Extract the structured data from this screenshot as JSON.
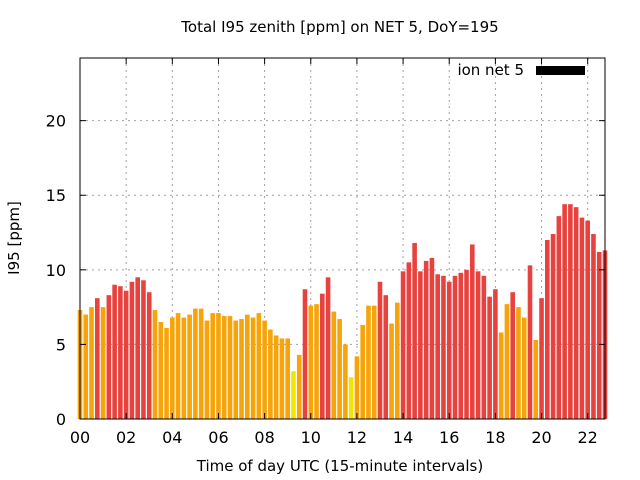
{
  "chart_data": {
    "type": "bar",
    "title": "Total I95 zenith [ppm] on NET 5, DoY=195",
    "xlabel": "Time of day UTC (15-minute intervals)",
    "ylabel": "I95 [ppm]",
    "xlim": [
      0,
      22.75
    ],
    "ylim": [
      0,
      24.2
    ],
    "x_ticks": [
      0,
      2,
      4,
      6,
      8,
      10,
      12,
      14,
      16,
      18,
      20,
      22
    ],
    "x_tick_labels": [
      "00",
      "02",
      "04",
      "06",
      "08",
      "10",
      "12",
      "14",
      "16",
      "18",
      "20",
      "22"
    ],
    "y_ticks": [
      0,
      5,
      10,
      15,
      20
    ],
    "y_tick_labels": [
      "0",
      "5",
      "10",
      "15",
      "20"
    ],
    "grid": true,
    "legend": {
      "label": "ion net 5",
      "position": "top-right",
      "color": "#000000"
    },
    "colors": {
      "high": "#e8423f",
      "medium": "#f7a30a",
      "low": "#f2e600",
      "grid": "#a0a0a0"
    },
    "bars": [
      {
        "x": 0.0,
        "value": 7.3,
        "level": "medium"
      },
      {
        "x": 0.25,
        "value": 7.0,
        "level": "medium"
      },
      {
        "x": 0.5,
        "value": 7.5,
        "level": "medium"
      },
      {
        "x": 0.75,
        "value": 8.1,
        "level": "high"
      },
      {
        "x": 1.0,
        "value": 7.5,
        "level": "medium"
      },
      {
        "x": 1.25,
        "value": 8.3,
        "level": "high"
      },
      {
        "x": 1.5,
        "value": 9.0,
        "level": "high"
      },
      {
        "x": 1.75,
        "value": 8.9,
        "level": "high"
      },
      {
        "x": 2.0,
        "value": 8.6,
        "level": "high"
      },
      {
        "x": 2.25,
        "value": 9.2,
        "level": "high"
      },
      {
        "x": 2.5,
        "value": 9.5,
        "level": "high"
      },
      {
        "x": 2.75,
        "value": 9.3,
        "level": "high"
      },
      {
        "x": 3.0,
        "value": 8.5,
        "level": "high"
      },
      {
        "x": 3.25,
        "value": 7.3,
        "level": "medium"
      },
      {
        "x": 3.5,
        "value": 6.5,
        "level": "medium"
      },
      {
        "x": 3.75,
        "value": 6.1,
        "level": "medium"
      },
      {
        "x": 4.0,
        "value": 6.8,
        "level": "medium"
      },
      {
        "x": 4.25,
        "value": 7.1,
        "level": "medium"
      },
      {
        "x": 4.5,
        "value": 6.8,
        "level": "medium"
      },
      {
        "x": 4.75,
        "value": 7.0,
        "level": "medium"
      },
      {
        "x": 5.0,
        "value": 7.4,
        "level": "medium"
      },
      {
        "x": 5.25,
        "value": 7.4,
        "level": "medium"
      },
      {
        "x": 5.5,
        "value": 6.6,
        "level": "medium"
      },
      {
        "x": 5.75,
        "value": 7.1,
        "level": "medium"
      },
      {
        "x": 6.0,
        "value": 7.1,
        "level": "medium"
      },
      {
        "x": 6.25,
        "value": 6.9,
        "level": "medium"
      },
      {
        "x": 6.5,
        "value": 6.9,
        "level": "medium"
      },
      {
        "x": 6.75,
        "value": 6.6,
        "level": "medium"
      },
      {
        "x": 7.0,
        "value": 6.7,
        "level": "medium"
      },
      {
        "x": 7.25,
        "value": 7.0,
        "level": "medium"
      },
      {
        "x": 7.5,
        "value": 6.8,
        "level": "medium"
      },
      {
        "x": 7.75,
        "value": 7.1,
        "level": "medium"
      },
      {
        "x": 8.0,
        "value": 6.6,
        "level": "medium"
      },
      {
        "x": 8.25,
        "value": 6.0,
        "level": "medium"
      },
      {
        "x": 8.5,
        "value": 5.6,
        "level": "medium"
      },
      {
        "x": 8.75,
        "value": 5.4,
        "level": "medium"
      },
      {
        "x": 9.0,
        "value": 5.4,
        "level": "medium"
      },
      {
        "x": 9.25,
        "value": 3.2,
        "level": "low"
      },
      {
        "x": 9.5,
        "value": 4.3,
        "level": "medium"
      },
      {
        "x": 9.75,
        "value": 8.7,
        "level": "high"
      },
      {
        "x": 10.0,
        "value": 7.6,
        "level": "medium"
      },
      {
        "x": 10.25,
        "value": 7.7,
        "level": "medium"
      },
      {
        "x": 10.5,
        "value": 8.4,
        "level": "high"
      },
      {
        "x": 10.75,
        "value": 9.5,
        "level": "high"
      },
      {
        "x": 11.0,
        "value": 7.2,
        "level": "medium"
      },
      {
        "x": 11.25,
        "value": 6.7,
        "level": "medium"
      },
      {
        "x": 11.5,
        "value": 5.0,
        "level": "medium"
      },
      {
        "x": 11.75,
        "value": 2.8,
        "level": "low"
      },
      {
        "x": 12.0,
        "value": 4.2,
        "level": "medium"
      },
      {
        "x": 12.25,
        "value": 6.3,
        "level": "medium"
      },
      {
        "x": 12.5,
        "value": 7.6,
        "level": "medium"
      },
      {
        "x": 12.75,
        "value": 7.6,
        "level": "medium"
      },
      {
        "x": 13.0,
        "value": 9.2,
        "level": "high"
      },
      {
        "x": 13.25,
        "value": 8.3,
        "level": "high"
      },
      {
        "x": 13.5,
        "value": 6.4,
        "level": "medium"
      },
      {
        "x": 13.75,
        "value": 7.8,
        "level": "medium"
      },
      {
        "x": 14.0,
        "value": 9.9,
        "level": "high"
      },
      {
        "x": 14.25,
        "value": 10.5,
        "level": "high"
      },
      {
        "x": 14.5,
        "value": 11.8,
        "level": "high"
      },
      {
        "x": 14.75,
        "value": 9.9,
        "level": "high"
      },
      {
        "x": 15.0,
        "value": 10.6,
        "level": "high"
      },
      {
        "x": 15.25,
        "value": 10.8,
        "level": "high"
      },
      {
        "x": 15.5,
        "value": 9.7,
        "level": "high"
      },
      {
        "x": 15.75,
        "value": 9.6,
        "level": "high"
      },
      {
        "x": 16.0,
        "value": 9.2,
        "level": "high"
      },
      {
        "x": 16.25,
        "value": 9.6,
        "level": "high"
      },
      {
        "x": 16.5,
        "value": 9.8,
        "level": "high"
      },
      {
        "x": 16.75,
        "value": 10.0,
        "level": "high"
      },
      {
        "x": 17.0,
        "value": 11.7,
        "level": "high"
      },
      {
        "x": 17.25,
        "value": 9.9,
        "level": "high"
      },
      {
        "x": 17.5,
        "value": 9.6,
        "level": "high"
      },
      {
        "x": 17.75,
        "value": 8.2,
        "level": "high"
      },
      {
        "x": 18.0,
        "value": 8.7,
        "level": "high"
      },
      {
        "x": 18.25,
        "value": 5.8,
        "level": "medium"
      },
      {
        "x": 18.5,
        "value": 7.7,
        "level": "medium"
      },
      {
        "x": 18.75,
        "value": 8.5,
        "level": "high"
      },
      {
        "x": 19.0,
        "value": 7.5,
        "level": "medium"
      },
      {
        "x": 19.25,
        "value": 6.8,
        "level": "medium"
      },
      {
        "x": 19.5,
        "value": 10.3,
        "level": "high"
      },
      {
        "x": 19.75,
        "value": 5.3,
        "level": "medium"
      },
      {
        "x": 20.0,
        "value": 8.1,
        "level": "high"
      },
      {
        "x": 20.25,
        "value": 12.0,
        "level": "high"
      },
      {
        "x": 20.5,
        "value": 12.4,
        "level": "high"
      },
      {
        "x": 20.75,
        "value": 13.6,
        "level": "high"
      },
      {
        "x": 21.0,
        "value": 14.4,
        "level": "high"
      },
      {
        "x": 21.25,
        "value": 14.4,
        "level": "high"
      },
      {
        "x": 21.5,
        "value": 14.2,
        "level": "high"
      },
      {
        "x": 21.75,
        "value": 13.5,
        "level": "high"
      },
      {
        "x": 22.0,
        "value": 13.3,
        "level": "high"
      },
      {
        "x": 22.25,
        "value": 12.4,
        "level": "high"
      },
      {
        "x": 22.5,
        "value": 11.2,
        "level": "high"
      },
      {
        "x": 22.75,
        "value": 11.3,
        "level": "high"
      }
    ]
  }
}
